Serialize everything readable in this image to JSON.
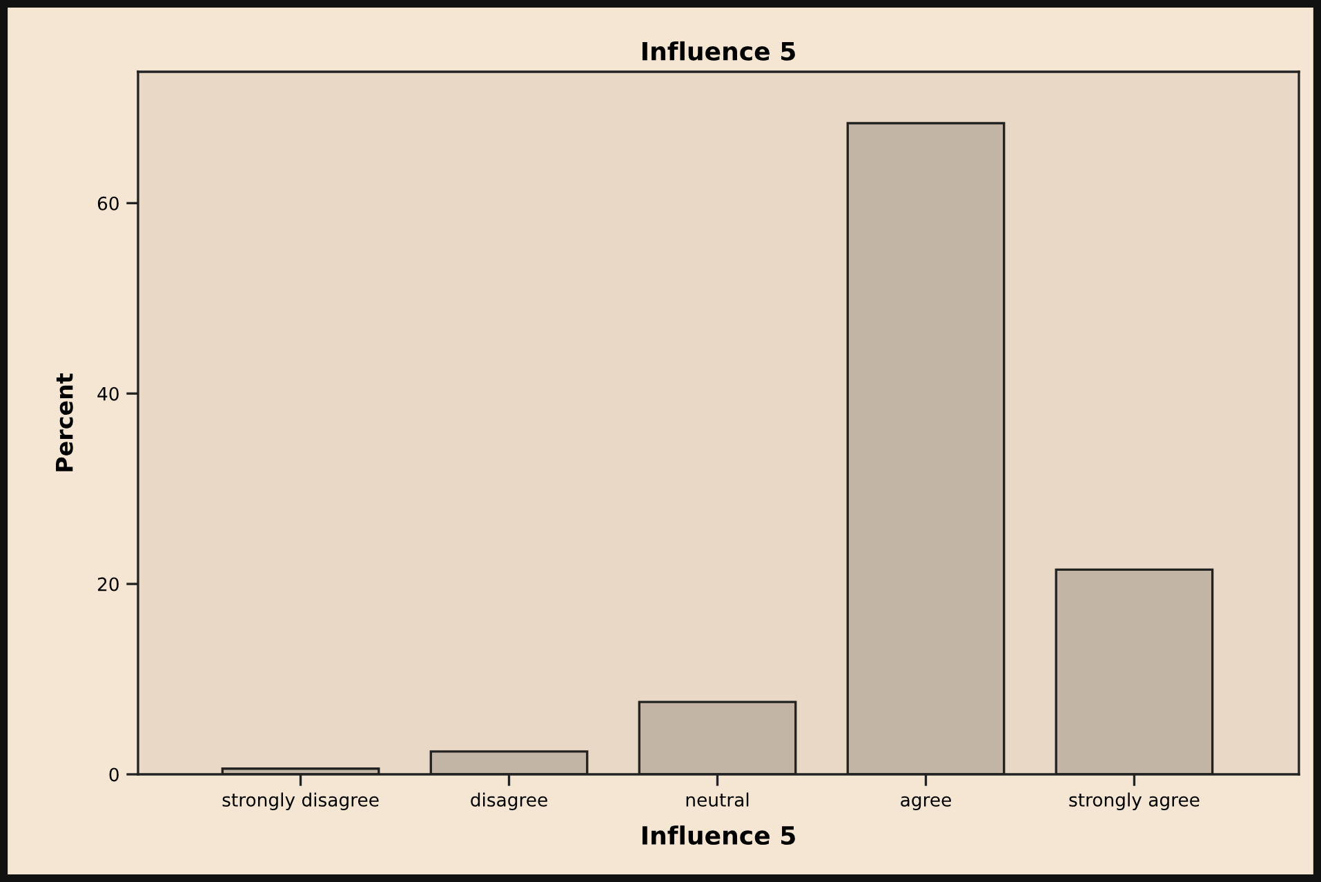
{
  "chart_data": {
    "type": "bar",
    "title": "Influence 5",
    "xlabel": "Influence 5",
    "ylabel": "Percent",
    "categories": [
      "strongly disagree",
      "disagree",
      "neutral",
      "agree",
      "strongly agree"
    ],
    "values": [
      0.6,
      2.4,
      7.6,
      68.4,
      21.5
    ],
    "color": "#c3b5a5",
    "ylim": [
      0,
      73.8
    ],
    "yticks": [
      0,
      20,
      40,
      60
    ],
    "grid": false
  }
}
